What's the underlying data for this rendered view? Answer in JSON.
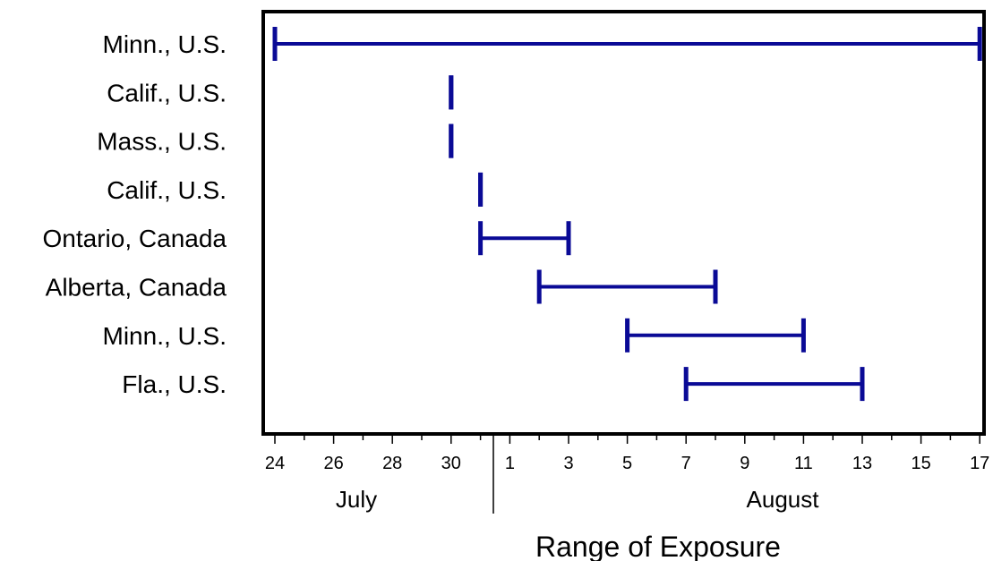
{
  "chart_data": {
    "type": "range",
    "title": "",
    "xlabel": "Range of Exposure",
    "ylabel": "",
    "x_axis": {
      "start": "July 24",
      "end": "August 17",
      "tick_labels": [
        "24",
        "26",
        "28",
        "30",
        "1",
        "3",
        "5",
        "7",
        "9",
        "11",
        "13",
        "15",
        "17"
      ],
      "month_labels": [
        "July",
        "August"
      ]
    },
    "categories": [
      "Minn., U.S.",
      "Calif., U.S.",
      "Mass., U.S.",
      "Calif., U.S.",
      "Ontario, Canada",
      "Alberta, Canada",
      "Minn., U.S.",
      "Fla., U.S."
    ],
    "ranges": [
      {
        "start": "July 24",
        "end": "August 17"
      },
      {
        "start": "July 30",
        "end": "July 30"
      },
      {
        "start": "July 30",
        "end": "July 30"
      },
      {
        "start": "July 31",
        "end": "July 31"
      },
      {
        "start": "July 31",
        "end": "August 3"
      },
      {
        "start": "August 2",
        "end": "August 8"
      },
      {
        "start": "August 5",
        "end": "August 11"
      },
      {
        "start": "August 7",
        "end": "August 13"
      }
    ],
    "grid": false,
    "legend": "none",
    "series_color": "#0a0a96"
  }
}
